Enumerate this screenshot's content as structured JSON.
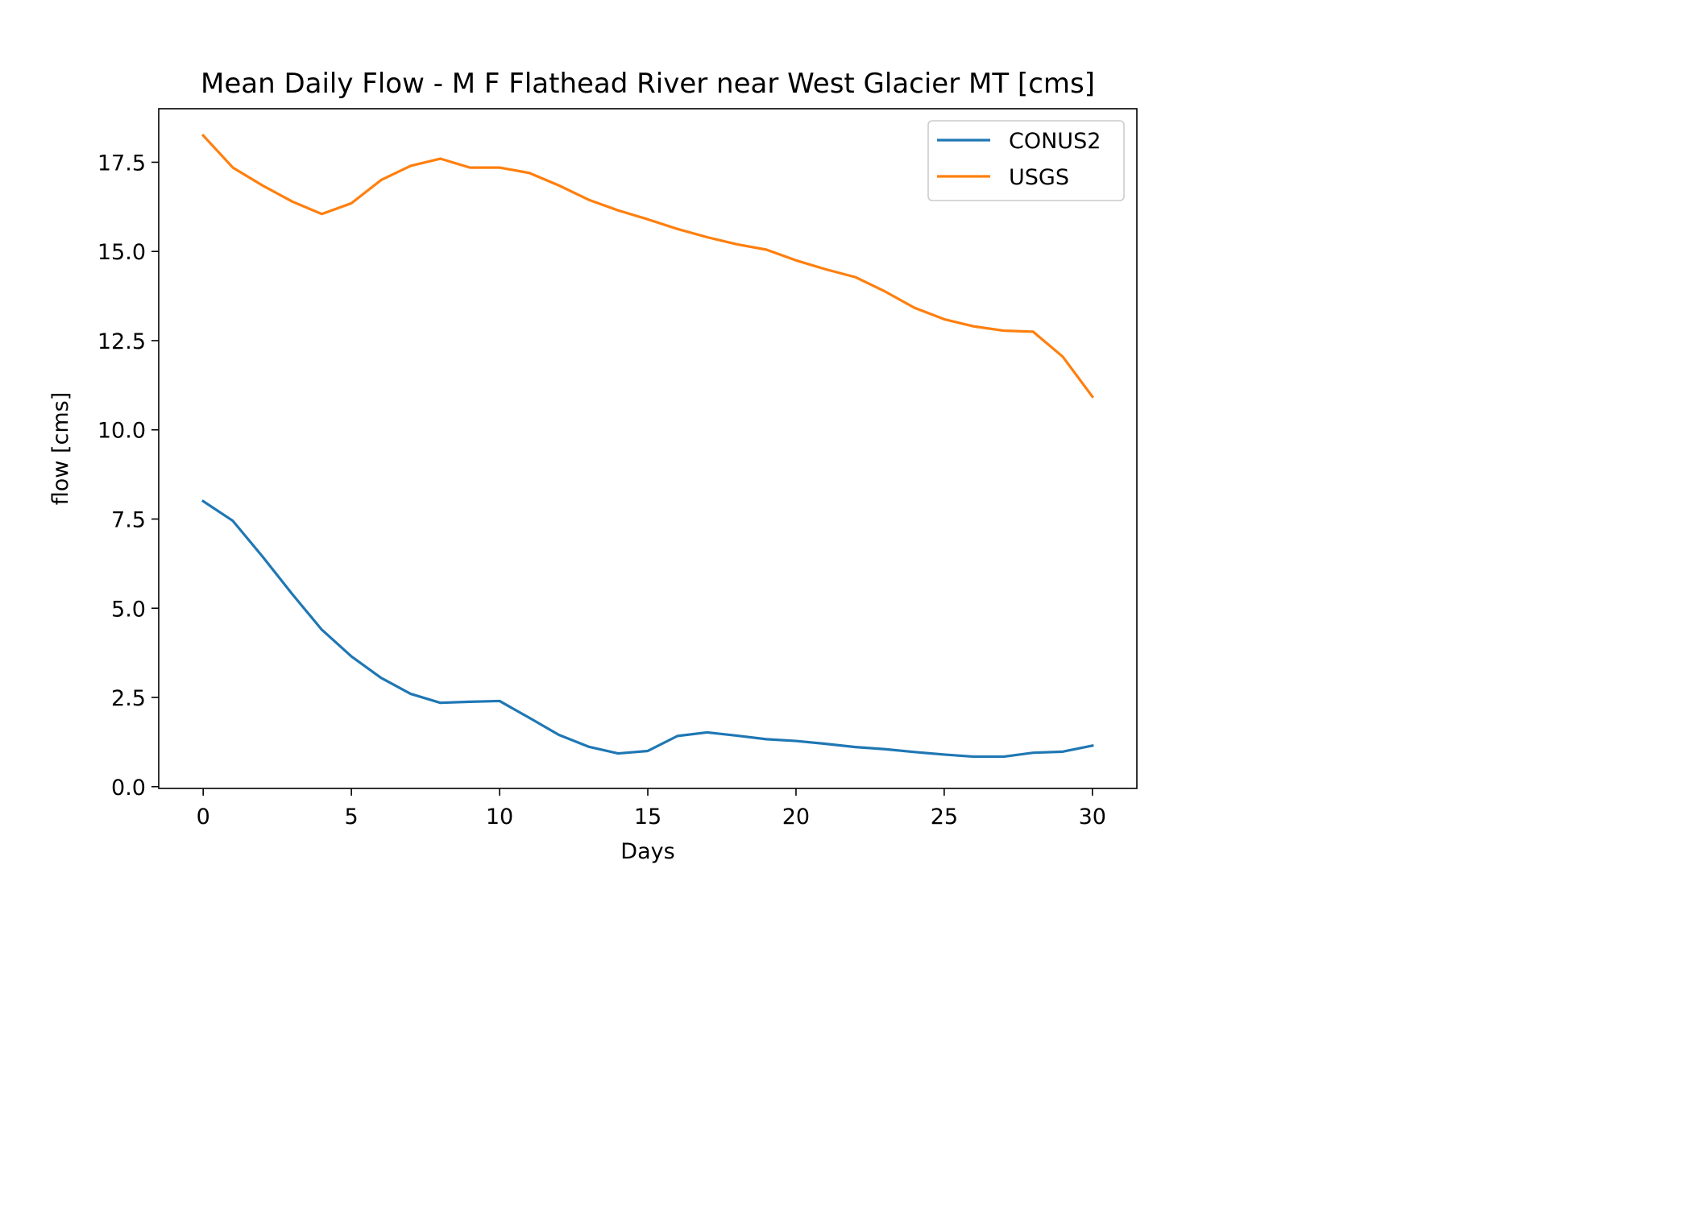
{
  "chart_data": {
    "type": "line",
    "title": "Mean Daily Flow - M F Flathead River near West Glacier MT [cms]",
    "xlabel": "Days",
    "ylabel": "flow [cms]",
    "xlim": [
      -1.5,
      31.5
    ],
    "ylim": [
      -0.05,
      19.0
    ],
    "xticks": [
      0,
      5,
      10,
      15,
      20,
      25,
      30
    ],
    "xtick_labels": [
      "0",
      "5",
      "10",
      "15",
      "20",
      "25",
      "30"
    ],
    "yticks": [
      0,
      2.5,
      5,
      7.5,
      10,
      12.5,
      15,
      17.5
    ],
    "ytick_labels": [
      "0.0",
      "2.5",
      "5.0",
      "7.5",
      "10.0",
      "12.5",
      "15.0",
      "17.5"
    ],
    "grid": false,
    "legend_position": "top-right",
    "x": [
      0,
      1,
      2,
      3,
      4,
      5,
      6,
      7,
      8,
      9,
      10,
      11,
      12,
      13,
      14,
      15,
      16,
      17,
      18,
      19,
      20,
      21,
      22,
      23,
      24,
      25,
      26,
      27,
      28,
      29,
      30
    ],
    "series": [
      {
        "name": "CONUS2",
        "color": "#1f77b4",
        "values": [
          8.0,
          7.45,
          6.45,
          5.4,
          4.4,
          3.65,
          3.05,
          2.6,
          2.35,
          2.38,
          2.4,
          1.93,
          1.45,
          1.12,
          0.93,
          1.0,
          1.42,
          1.52,
          1.43,
          1.33,
          1.28,
          1.2,
          1.11,
          1.05,
          0.97,
          0.9,
          0.84,
          0.84,
          0.95,
          0.98,
          1.15
        ]
      },
      {
        "name": "USGS",
        "color": "#ff7f0e",
        "values": [
          18.25,
          17.35,
          16.85,
          16.4,
          16.05,
          16.35,
          17.0,
          17.4,
          17.6,
          17.35,
          17.35,
          17.2,
          16.85,
          16.45,
          16.15,
          15.9,
          15.63,
          15.4,
          15.2,
          15.05,
          14.75,
          14.5,
          14.28,
          13.88,
          13.42,
          13.1,
          12.9,
          12.78,
          12.75,
          12.05,
          10.93
        ]
      }
    ]
  }
}
